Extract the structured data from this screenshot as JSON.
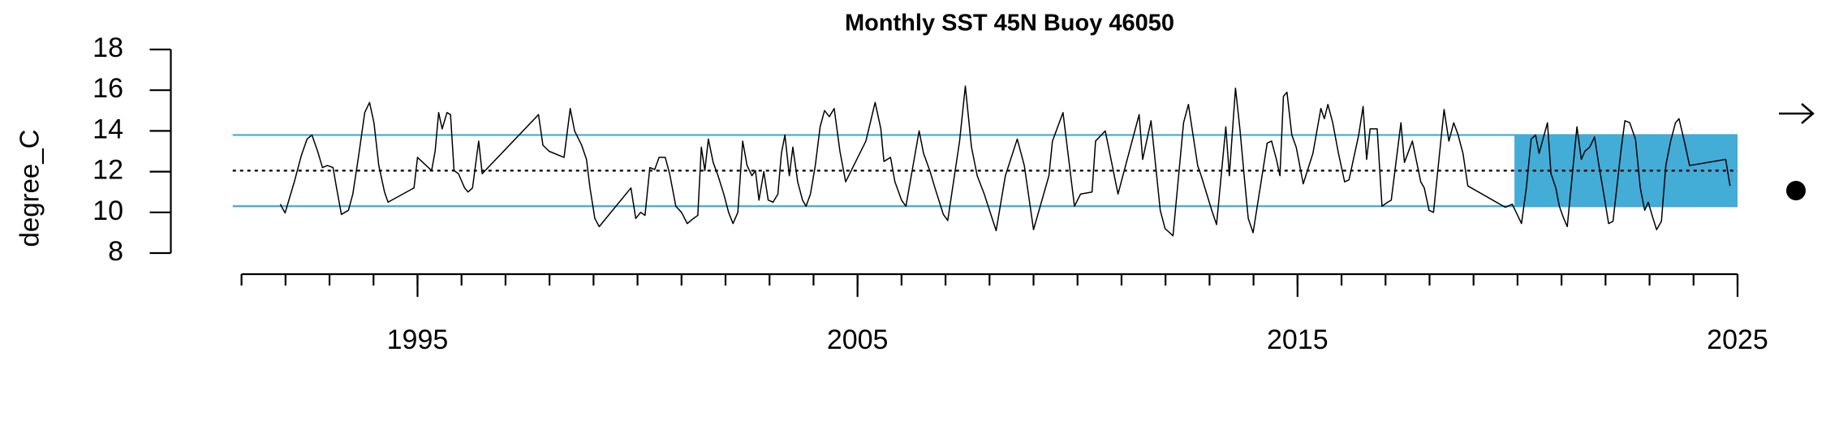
{
  "chart_data": {
    "type": "line",
    "title": "Monthly SST 45N Buoy 46050",
    "y_label": "degree_C",
    "color": "#000000",
    "x": [
      1991.88,
      1991.99,
      1992.2,
      1992.36,
      1992.49,
      1992.6,
      1992.73,
      1992.84,
      1992.95,
      1993.08,
      1993.16,
      1993.27,
      1993.43,
      1993.53,
      1993.67,
      1993.8,
      1993.91,
      1994.01,
      1994.12,
      1994.25,
      1994.33,
      1994.92,
      1995.0,
      1995.32,
      1995.4,
      1995.48,
      1995.56,
      1995.67,
      1995.75,
      1995.83,
      1995.93,
      1996.07,
      1996.15,
      1996.25,
      1996.39,
      1996.47,
      1997.75,
      1997.85,
      1997.99,
      1998.33,
      1998.47,
      1998.57,
      1998.73,
      1998.84,
      1998.92,
      1999.03,
      1999.13,
      1999.85,
      1999.96,
      2000.07,
      2000.17,
      2000.28,
      2000.39,
      2000.49,
      2000.63,
      2000.73,
      2000.87,
      2001.0,
      2001.13,
      2001.27,
      2001.37,
      2001.45,
      2001.53,
      2001.61,
      2001.72,
      2001.83,
      2001.96,
      2002.07,
      2002.17,
      2002.28,
      2002.39,
      2002.49,
      2002.6,
      2002.68,
      2002.76,
      2002.87,
      2002.97,
      2003.08,
      2003.19,
      2003.27,
      2003.35,
      2003.45,
      2003.53,
      2003.64,
      2003.75,
      2003.83,
      2003.93,
      2004.04,
      2004.15,
      2004.25,
      2004.36,
      2004.47,
      2004.6,
      2004.73,
      2005.19,
      2005.4,
      2005.53,
      2005.6,
      2005.75,
      2005.85,
      2006.0,
      2006.1,
      2006.4,
      2006.5,
      2006.65,
      2006.76,
      2006.95,
      2007.05,
      2007.32,
      2007.45,
      2007.59,
      2007.72,
      2007.88,
      2008.15,
      2008.36,
      2008.63,
      2008.79,
      2009.0,
      2009.35,
      2009.43,
      2009.67,
      2009.93,
      2010.07,
      2010.33,
      2010.41,
      2010.63,
      2010.92,
      2011.4,
      2011.48,
      2011.67,
      2011.88,
      2011.99,
      2012.17,
      2012.41,
      2012.52,
      2012.73,
      2012.81,
      2013.05,
      2013.16,
      2013.37,
      2013.45,
      2013.59,
      2013.69,
      2013.8,
      2013.88,
      2013.99,
      2014.31,
      2014.41,
      2014.52,
      2014.6,
      2014.68,
      2014.76,
      2014.87,
      2014.97,
      2015.05,
      2015.13,
      2015.35,
      2015.53,
      2015.61,
      2015.69,
      2015.8,
      2015.93,
      2016.07,
      2016.17,
      2016.39,
      2016.49,
      2016.57,
      2016.65,
      2016.81,
      2016.92,
      2017.05,
      2017.13,
      2017.35,
      2017.43,
      2017.61,
      2017.8,
      2017.88,
      2017.99,
      2018.09,
      2018.33,
      2018.44,
      2018.55,
      2018.65,
      2018.76,
      2018.87,
      2019.72,
      2019.88,
      2020.09,
      2020.2,
      2020.31,
      2020.41,
      2020.49,
      2020.68,
      2020.76,
      2020.87,
      2020.95,
      2021.05,
      2021.13,
      2021.35,
      2021.45,
      2021.53,
      2021.64,
      2021.75,
      2021.85,
      2021.96,
      2022.07,
      2022.17,
      2022.36,
      2022.44,
      2022.55,
      2022.68,
      2022.79,
      2022.89,
      2022.97,
      2023.08,
      2023.16,
      2023.27,
      2023.37,
      2023.48,
      2023.59,
      2023.67,
      2023.8,
      2023.91,
      2024.73,
      2024.83
    ],
    "values": [
      10.4,
      9.97,
      11.5,
      12.8,
      13.6,
      13.8,
      13.0,
      12.2,
      12.3,
      12.2,
      11.2,
      9.9,
      10.1,
      10.9,
      12.9,
      14.9,
      15.4,
      14.4,
      12.3,
      11.0,
      10.5,
      11.2,
      12.7,
      12.05,
      13.0,
      14.9,
      14.1,
      14.9,
      14.8,
      12.05,
      11.9,
      11.2,
      11.0,
      11.2,
      13.5,
      11.9,
      14.8,
      13.3,
      13.0,
      12.7,
      15.1,
      14.0,
      13.3,
      12.6,
      11.2,
      9.7,
      9.3,
      11.2,
      9.7,
      10.0,
      9.85,
      12.2,
      12.1,
      12.7,
      12.7,
      11.9,
      10.3,
      10.0,
      9.45,
      9.7,
      9.85,
      13.2,
      12.05,
      13.6,
      12.45,
      11.8,
      10.9,
      10.0,
      9.45,
      10.0,
      13.5,
      12.3,
      11.8,
      12.05,
      10.6,
      12.0,
      10.6,
      10.5,
      10.9,
      12.9,
      13.8,
      11.8,
      13.2,
      11.5,
      10.6,
      10.3,
      10.9,
      12.3,
      14.2,
      15.0,
      14.7,
      15.1,
      13.0,
      11.5,
      13.5,
      15.4,
      14.1,
      12.5,
      12.7,
      11.5,
      10.6,
      10.3,
      14.0,
      12.9,
      12.0,
      11.2,
      9.9,
      9.6,
      13.5,
      16.2,
      13.2,
      11.8,
      10.9,
      9.1,
      11.8,
      13.6,
      12.3,
      9.15,
      11.8,
      13.5,
      14.9,
      10.3,
      10.9,
      11.0,
      13.5,
      14.0,
      10.9,
      14.8,
      12.6,
      14.5,
      10.1,
      9.2,
      8.85,
      14.4,
      15.3,
      12.3,
      11.8,
      10.1,
      9.4,
      14.2,
      11.8,
      16.1,
      14.1,
      11.5,
      9.7,
      9.0,
      13.4,
      13.5,
      12.6,
      11.8,
      15.7,
      15.9,
      13.8,
      13.2,
      12.3,
      11.4,
      12.9,
      15.1,
      14.6,
      15.3,
      14.4,
      12.9,
      11.5,
      11.6,
      13.8,
      15.2,
      12.6,
      14.1,
      14.1,
      10.3,
      10.5,
      10.6,
      14.4,
      12.45,
      13.5,
      11.5,
      11.2,
      10.1,
      10.0,
      15.05,
      13.5,
      14.4,
      13.8,
      12.9,
      11.3,
      10.25,
      10.4,
      9.45,
      11.2,
      13.6,
      13.8,
      12.9,
      14.4,
      11.9,
      11.2,
      10.3,
      9.7,
      9.3,
      14.2,
      12.6,
      13.0,
      13.2,
      13.7,
      12.3,
      10.9,
      9.45,
      9.56,
      13.2,
      14.5,
      14.4,
      13.6,
      11.2,
      10.1,
      10.5,
      9.7,
      9.15,
      9.56,
      12.3,
      13.5,
      14.4,
      14.6,
      13.4,
      12.3,
      12.6,
      11.3
    ],
    "ylim": [
      8,
      18
    ],
    "yticks": [
      8,
      10,
      12,
      14,
      16,
      18
    ],
    "xlim": [
      1991,
      2025
    ],
    "xticks": [
      1995,
      2005,
      2015,
      2025
    ],
    "xminor_ticks": [
      1991,
      1992,
      1993,
      1994,
      1995,
      1996,
      1997,
      1998,
      1999,
      2000,
      2001,
      2002,
      2003,
      2004,
      2005,
      2006,
      2007,
      2008,
      2009,
      2010,
      2011,
      2012,
      2013,
      2014,
      2015,
      2016,
      2017,
      2018,
      2019,
      2020,
      2021,
      2022,
      2023,
      2024,
      2025
    ],
    "reference_xlim": [
      1990.8,
      2025
    ],
    "reference_lines": [
      {
        "value": 13.8,
        "color": "#41aad6",
        "style": "solid"
      },
      {
        "value": 10.3,
        "color": "#41aad6",
        "style": "solid"
      },
      {
        "value": 12.05,
        "color": "#000000",
        "style": "dotted"
      }
    ],
    "highlight": {
      "xlim": [
        2019.93,
        2025
      ],
      "ylim": [
        10.3,
        13.8
      ],
      "color": "#43acd7"
    }
  }
}
